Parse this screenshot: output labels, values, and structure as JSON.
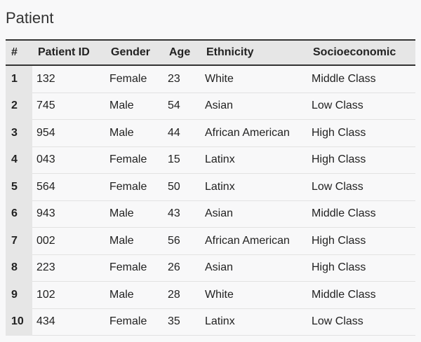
{
  "page": {
    "title": "Patient"
  },
  "table": {
    "headers": [
      "#",
      "Patient ID",
      "Gender",
      "Age",
      "Ethnicity",
      "Socioeconomic"
    ],
    "rows": [
      [
        "1",
        "132",
        "Female",
        "23",
        "White",
        "Middle Class"
      ],
      [
        "2",
        "745",
        "Male",
        "54",
        "Asian",
        "Low Class"
      ],
      [
        "3",
        "954",
        "Male",
        "44",
        "African American",
        "High Class"
      ],
      [
        "4",
        "043",
        "Female",
        "15",
        "Latinx",
        "High Class"
      ],
      [
        "5",
        "564",
        "Female",
        "50",
        "Latinx",
        "Low Class"
      ],
      [
        "6",
        "943",
        "Male",
        "43",
        "Asian",
        "Middle Class"
      ],
      [
        "7",
        "002",
        "Male",
        "56",
        "African American",
        "High Class"
      ],
      [
        "8",
        "223",
        "Female",
        "26",
        "Asian",
        "High Class"
      ],
      [
        "9",
        "102",
        "Male",
        "28",
        "White",
        "Middle Class"
      ],
      [
        "10",
        "434",
        "Female",
        "35",
        "Latinx",
        "Low Class"
      ]
    ]
  }
}
